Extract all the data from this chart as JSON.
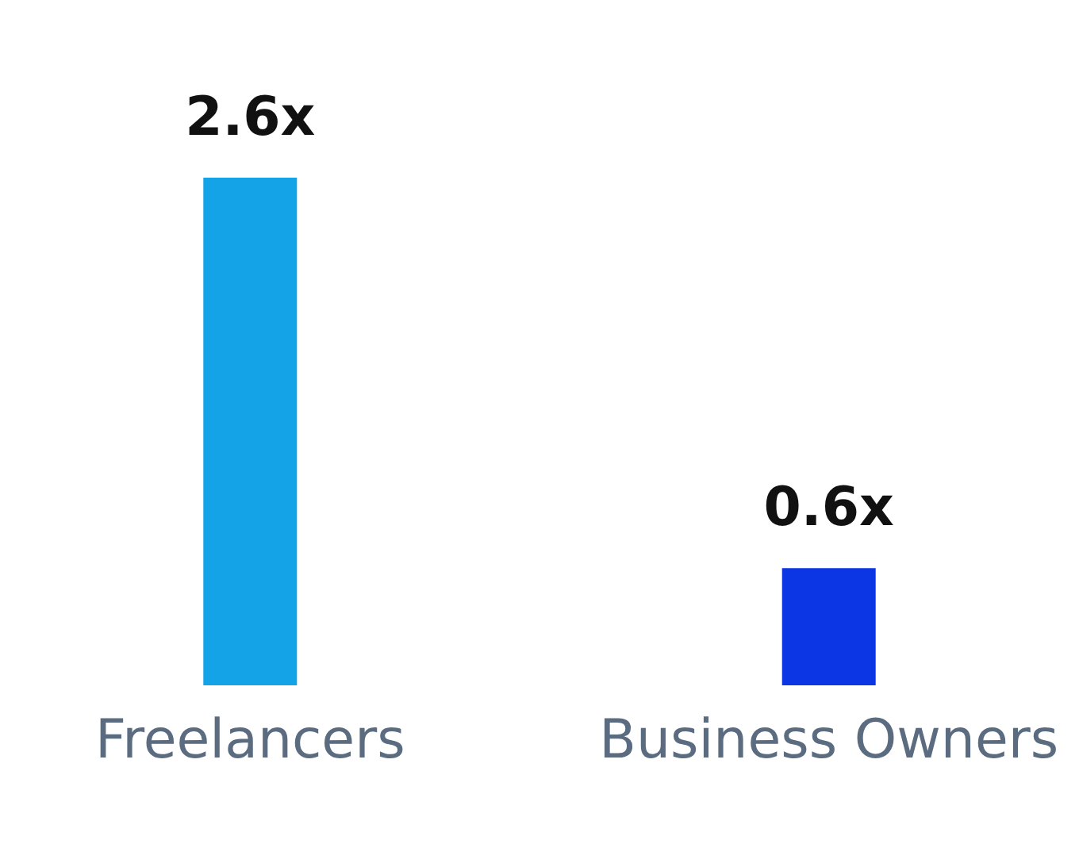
{
  "chart_data": {
    "type": "bar",
    "categories": [
      "Freelancers",
      "Business Owners"
    ],
    "values": [
      2.6,
      0.6
    ],
    "colors": [
      "#15a3e8",
      "#0c36e4"
    ],
    "value_labels": [
      "2.6x",
      "0.6x"
    ]
  }
}
